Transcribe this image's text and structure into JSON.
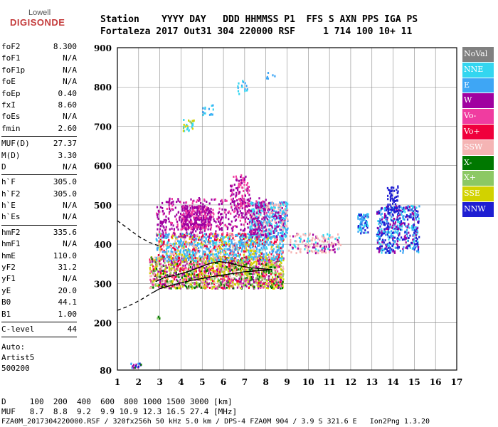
{
  "logo": {
    "top": "Lowell",
    "bottom": "DIGISONDE"
  },
  "header": {
    "line1": "Station    YYYY DAY   DDD HHMMSS P1  FFS S AXN PPS IGA PS",
    "line2": "Fortaleza 2017 Out31 304 220000 RSF     1 714 100 10+ 11"
  },
  "params": {
    "group1": [
      {
        "k": "foF2",
        "v": "8.300"
      },
      {
        "k": "foF1",
        "v": "N/A"
      },
      {
        "k": "foF1p",
        "v": "N/A"
      },
      {
        "k": "foE",
        "v": "N/A"
      },
      {
        "k": "foEp",
        "v": "0.40"
      },
      {
        "k": "fxI",
        "v": "8.60"
      },
      {
        "k": "foEs",
        "v": "N/A"
      },
      {
        "k": "fmin",
        "v": "2.60"
      }
    ],
    "group2": [
      {
        "k": "MUF(D)",
        "v": "27.37"
      },
      {
        "k": "M(D)",
        "v": "3.30"
      },
      {
        "k": "D",
        "v": "N/A"
      }
    ],
    "group3": [
      {
        "k": "h`F",
        "v": "305.0"
      },
      {
        "k": "h`F2",
        "v": "305.0"
      },
      {
        "k": "h`E",
        "v": "N/A"
      },
      {
        "k": "h`Es",
        "v": "N/A"
      }
    ],
    "group4": [
      {
        "k": "hmF2",
        "v": "335.6"
      },
      {
        "k": "hmF1",
        "v": "N/A"
      },
      {
        "k": "hmE",
        "v": "110.0"
      },
      {
        "k": "yF2",
        "v": "31.2"
      },
      {
        "k": "yF1",
        "v": "N/A"
      },
      {
        "k": "yE",
        "v": "20.0"
      },
      {
        "k": "B0",
        "v": "44.1"
      },
      {
        "k": "B1",
        "v": "1.00"
      }
    ],
    "group5": [
      {
        "k": "C-level",
        "v": "44"
      }
    ],
    "auto": [
      "Auto:",
      "Artist5",
      "500200"
    ]
  },
  "bottom": {
    "line1": "D     100  200  400  600  800 1000 1500 3000 [km]",
    "line2": "MUF   8.7  8.8  9.2  9.9 10.9 12.3 16.5 27.4 [MHz]",
    "line3": "FZA0M_2017304220000.RSF / 320fx256h 50 kHz 5.0 km / DPS-4 FZA0M 904 / 3.9 S 321.6 E   Ion2Png 1.3.20"
  },
  "legend": [
    {
      "label": "NoVal",
      "color": "#808080"
    },
    {
      "label": "NNE",
      "color": "#33d6f0"
    },
    {
      "label": "E",
      "color": "#3ea6f5"
    },
    {
      "label": "W",
      "color": "#a000a0"
    },
    {
      "label": "Vo-",
      "color": "#f03ca0"
    },
    {
      "label": "Vo+",
      "color": "#f0003c"
    },
    {
      "label": "SSW",
      "color": "#f5b4b4"
    },
    {
      "label": "X-",
      "color": "#007800"
    },
    {
      "label": "X+",
      "color": "#8cc864"
    },
    {
      "label": "SSE",
      "color": "#d2d200"
    },
    {
      "label": "NNW",
      "color": "#1e1ed2"
    }
  ],
  "chart_data": {
    "type": "scatter",
    "xlim": [
      1,
      17
    ],
    "ylim": [
      80,
      900
    ],
    "x_ticks": [
      1,
      2,
      3,
      4,
      5,
      6,
      7,
      8,
      9,
      10,
      11,
      12,
      13,
      14,
      15,
      16,
      17
    ],
    "y_ticks": [
      80,
      200,
      300,
      400,
      500,
      600,
      700,
      800,
      900
    ],
    "grid": true,
    "traces": [
      {
        "name": "model-profile",
        "style": "solid",
        "x": [
          2.6,
          3.0,
          3.5,
          4.0,
          4.5,
          5.0,
          5.5,
          6.0,
          6.5,
          7.0,
          7.5,
          8.0,
          8.3
        ],
        "y": [
          275,
          287,
          295,
          302,
          308,
          313,
          318,
          322,
          326,
          330,
          332,
          334,
          336
        ]
      },
      {
        "name": "trace-o",
        "style": "solid",
        "x": [
          2.8,
          3.2,
          3.8,
          4.3,
          4.8,
          5.3,
          5.8,
          6.3,
          6.8,
          7.3,
          7.8,
          8.3
        ],
        "y": [
          305,
          315,
          322,
          330,
          340,
          350,
          356,
          352,
          345,
          340,
          338,
          335
        ]
      },
      {
        "name": "extrapolated-low",
        "style": "dashed",
        "x": [
          1.0,
          1.4,
          1.8,
          2.2,
          2.6
        ],
        "y": [
          232,
          240,
          250,
          262,
          275
        ]
      },
      {
        "name": "extrapolated-high",
        "style": "dashed",
        "x": [
          1.0,
          1.5,
          2.0,
          2.5,
          3.0
        ],
        "y": [
          460,
          440,
          420,
          405,
          395
        ]
      }
    ]
  }
}
